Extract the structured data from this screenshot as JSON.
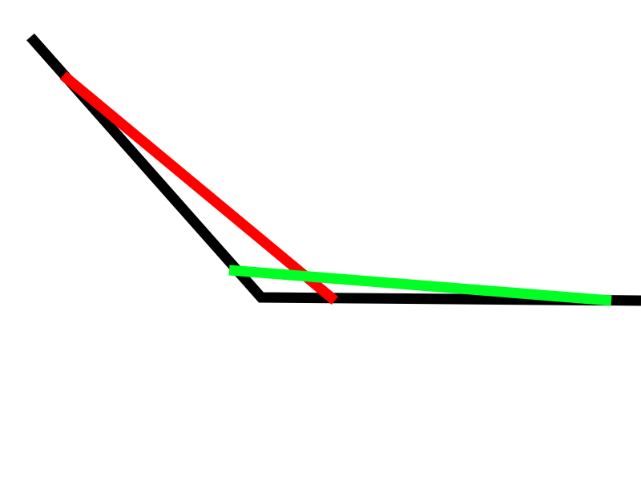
{
  "colors": {
    "background": "#ffffff",
    "polyline": "#000000",
    "segment_a": "#ff0000",
    "segment_b": "#00ff22"
  },
  "shapes": [
    {
      "name": "black-polyline",
      "kind": "polyline",
      "color_key": "polyline"
    },
    {
      "name": "red-segment",
      "kind": "line",
      "color_key": "segment_a"
    },
    {
      "name": "green-segment",
      "kind": "line",
      "color_key": "segment_b"
    }
  ]
}
